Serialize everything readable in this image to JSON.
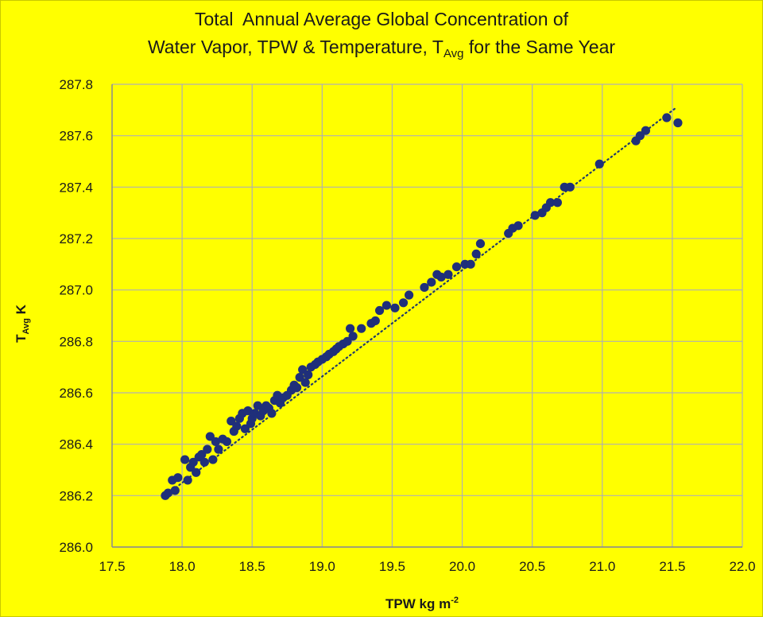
{
  "chart_data": {
    "type": "scatter",
    "title": {
      "line1": "Total  Annual Average Global Concentration of",
      "line2_before": "Water Vapor, TPW & Temperature, T",
      "line2_sub": "Avg",
      "line2_after": " for the Same Year"
    },
    "ylabel": {
      "main": "T",
      "sub": "Avg",
      "after": " K"
    },
    "xlabel": {
      "main": "TPW kg m",
      "sup": "-2"
    },
    "xlim": [
      17.5,
      22.0
    ],
    "ylim": [
      286.0,
      287.8
    ],
    "x_ticks": [
      17.5,
      18.0,
      18.5,
      19.0,
      19.5,
      20.0,
      20.5,
      21.0,
      21.5,
      22.0
    ],
    "y_ticks": [
      286.0,
      286.2,
      286.4,
      286.6,
      286.8,
      287.0,
      287.2,
      287.4,
      287.6,
      287.8
    ],
    "x_tick_labels": [
      "17.5",
      "18.0",
      "18.5",
      "19.0",
      "19.5",
      "20.0",
      "20.5",
      "21.0",
      "21.5",
      "22.0"
    ],
    "y_tick_labels": [
      "286.0",
      "286.2",
      "286.4",
      "286.6",
      "286.8",
      "287.0",
      "287.2",
      "287.4",
      "287.6",
      "287.8"
    ],
    "grid": true,
    "point_color": "#1f2f7a",
    "trend_color": "#1f3a6b",
    "background_color": "#ffff00",
    "grid_color": "#b0b0b0",
    "trendline": {
      "style": "dotted",
      "x": [
        17.88,
        21.53
      ],
      "y": [
        286.2,
        287.71
      ]
    },
    "points": [
      [
        17.88,
        286.2
      ],
      [
        17.9,
        286.21
      ],
      [
        17.93,
        286.26
      ],
      [
        17.95,
        286.22
      ],
      [
        17.97,
        286.27
      ],
      [
        18.02,
        286.34
      ],
      [
        18.04,
        286.26
      ],
      [
        18.06,
        286.31
      ],
      [
        18.08,
        286.33
      ],
      [
        18.1,
        286.29
      ],
      [
        18.12,
        286.35
      ],
      [
        18.14,
        286.36
      ],
      [
        18.16,
        286.33
      ],
      [
        18.18,
        286.38
      ],
      [
        18.2,
        286.43
      ],
      [
        18.22,
        286.34
      ],
      [
        18.24,
        286.41
      ],
      [
        18.26,
        286.38
      ],
      [
        18.29,
        286.42
      ],
      [
        18.32,
        286.41
      ],
      [
        18.35,
        286.49
      ],
      [
        18.37,
        286.45
      ],
      [
        18.39,
        286.47
      ],
      [
        18.41,
        286.5
      ],
      [
        18.43,
        286.52
      ],
      [
        18.45,
        286.46
      ],
      [
        18.47,
        286.53
      ],
      [
        18.49,
        286.48
      ],
      [
        18.5,
        286.5
      ],
      [
        18.52,
        286.52
      ],
      [
        18.54,
        286.55
      ],
      [
        18.56,
        286.51
      ],
      [
        18.58,
        286.53
      ],
      [
        18.6,
        286.55
      ],
      [
        18.62,
        286.54
      ],
      [
        18.64,
        286.52
      ],
      [
        18.66,
        286.57
      ],
      [
        18.68,
        286.59
      ],
      [
        18.7,
        286.56
      ],
      [
        18.72,
        286.58
      ],
      [
        18.75,
        286.59
      ],
      [
        18.78,
        286.61
      ],
      [
        18.8,
        286.63
      ],
      [
        18.82,
        286.62
      ],
      [
        18.84,
        286.66
      ],
      [
        18.86,
        286.69
      ],
      [
        18.88,
        286.64
      ],
      [
        18.9,
        286.67
      ],
      [
        18.92,
        286.7
      ],
      [
        18.95,
        286.71
      ],
      [
        18.97,
        286.72
      ],
      [
        19.0,
        286.73
      ],
      [
        19.03,
        286.74
      ],
      [
        19.05,
        286.75
      ],
      [
        19.08,
        286.76
      ],
      [
        19.1,
        286.77
      ],
      [
        19.12,
        286.78
      ],
      [
        19.15,
        286.79
      ],
      [
        19.18,
        286.8
      ],
      [
        19.2,
        286.85
      ],
      [
        19.22,
        286.82
      ],
      [
        19.28,
        286.85
      ],
      [
        19.35,
        286.87
      ],
      [
        19.38,
        286.88
      ],
      [
        19.41,
        286.92
      ],
      [
        19.46,
        286.94
      ],
      [
        19.52,
        286.93
      ],
      [
        19.58,
        286.95
      ],
      [
        19.62,
        286.98
      ],
      [
        19.73,
        287.01
      ],
      [
        19.78,
        287.03
      ],
      [
        19.82,
        287.06
      ],
      [
        19.85,
        287.05
      ],
      [
        19.9,
        287.06
      ],
      [
        19.96,
        287.09
      ],
      [
        20.02,
        287.1
      ],
      [
        20.06,
        287.1
      ],
      [
        20.1,
        287.14
      ],
      [
        20.13,
        287.18
      ],
      [
        20.33,
        287.22
      ],
      [
        20.36,
        287.24
      ],
      [
        20.4,
        287.25
      ],
      [
        20.52,
        287.29
      ],
      [
        20.57,
        287.3
      ],
      [
        20.6,
        287.32
      ],
      [
        20.63,
        287.34
      ],
      [
        20.68,
        287.34
      ],
      [
        20.73,
        287.4
      ],
      [
        20.77,
        287.4
      ],
      [
        20.98,
        287.49
      ],
      [
        21.24,
        287.58
      ],
      [
        21.27,
        287.6
      ],
      [
        21.31,
        287.62
      ],
      [
        21.46,
        287.67
      ],
      [
        21.54,
        287.65
      ]
    ]
  }
}
